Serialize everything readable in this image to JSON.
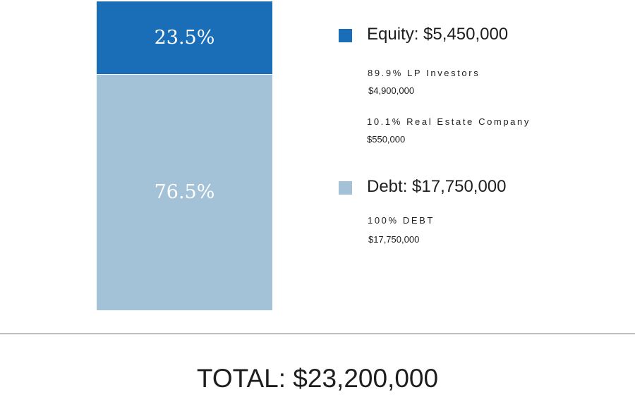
{
  "chart_data": {
    "type": "bar",
    "stacked": true,
    "categories": [
      ""
    ],
    "series": [
      {
        "name": "Equity",
        "value": 5450000,
        "percent_label": "23.5%",
        "color": "#1a6eb8",
        "legend_label": "Equity: $5,450,000",
        "breakdown": [
          {
            "label": "89.9% LP Investors",
            "amount": "$4,900,000"
          },
          {
            "label": "10.1% Real Estate Company",
            "amount": "$550,000"
          }
        ]
      },
      {
        "name": "Debt",
        "value": 17750000,
        "percent_label": "76.5%",
        "color": "#a4c2d7",
        "legend_label": "Debt: $17,750,000",
        "breakdown": [
          {
            "label": "100% DEBT",
            "amount": "$17,750,000"
          }
        ]
      }
    ],
    "total_label": "TOTAL: $23,200,000",
    "legend_position": "right"
  }
}
